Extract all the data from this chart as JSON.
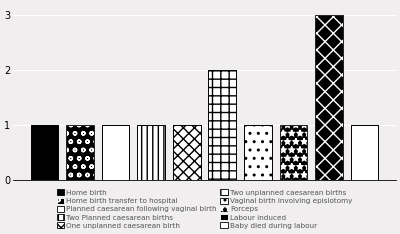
{
  "categories": [
    "Home birth",
    "Home birth transfer to hospital",
    "Planned caesarean following vaginal birth",
    "Two Planned caesarean births",
    "One unplanned caesarean birth",
    "Two unplanned caesarean births",
    "Vaginal birth involving episiotomy",
    "Forceps",
    "Labour induced",
    "Baby died during labour"
  ],
  "values": [
    1,
    1,
    1,
    1,
    1,
    2,
    1,
    1,
    3,
    1
  ],
  "face_colors": [
    "black",
    "black",
    "white",
    "white",
    "white",
    "white",
    "white",
    "black",
    "black",
    "white"
  ],
  "hatch_patterns": [
    "",
    "o o",
    "===",
    "|||",
    "xxx",
    "++",
    ". .",
    "**",
    "XX",
    ""
  ],
  "hatch_ec": [
    "black",
    "white",
    "black",
    "black",
    "black",
    "black",
    "black",
    "white",
    "white",
    "black"
  ],
  "ylim": [
    0,
    3.2
  ],
  "yticks": [
    0,
    1,
    2,
    3
  ],
  "background_color": "#f0eeee",
  "legend_labels": [
    "Home birth",
    "Home birth transfer to hospital",
    "Planned caesarean following vaginal birth",
    "Two Planned caesarean births",
    "One unplanned caesarean birth",
    "Two unplanned caesarean births",
    "Vaginal birth involving episiotomy",
    "Forceps",
    "Labour induced",
    "Baby died during labour"
  ],
  "legend_face_colors": [
    "black",
    "black",
    "white",
    "white",
    "white",
    "white",
    "white",
    "black",
    "black",
    "white"
  ],
  "legend_hatch_patterns": [
    "",
    "o o",
    "===",
    "|||",
    "xxx",
    "++",
    ". .",
    "**",
    "XX",
    ""
  ],
  "legend_hatch_ec": [
    "black",
    "white",
    "black",
    "black",
    "black",
    "black",
    "black",
    "white",
    "white",
    "black"
  ]
}
